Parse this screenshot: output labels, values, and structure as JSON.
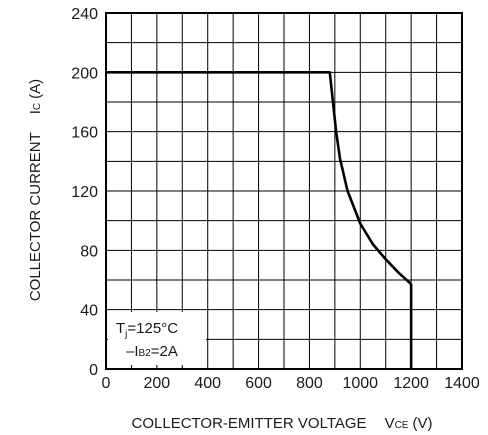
{
  "chart_data": {
    "type": "line",
    "x_axis": {
      "label_main": "COLLECTOR-EMITTER VOLTAGE",
      "label_symbol": "V",
      "label_subscript": "CE",
      "label_unit": "(V)",
      "range": [
        0,
        1400
      ],
      "ticks": [
        "0",
        "200",
        "400",
        "600",
        "800",
        "1000",
        "1200",
        "1400"
      ],
      "minor_step": 100
    },
    "y_axis": {
      "label_main": "COLLECTOR CURRENT",
      "label_symbol": "I",
      "label_subscript": "C",
      "label_unit": "(A)",
      "range": [
        0,
        240
      ],
      "ticks": [
        "0",
        "40",
        "80",
        "120",
        "160",
        "200",
        "240"
      ],
      "minor_step": 20
    },
    "grid": true,
    "series": [
      {
        "x": [
          0,
          880,
          895,
          905,
          920,
          950,
          1000,
          1050,
          1100,
          1150,
          1195,
          1200,
          1200
        ],
        "y": [
          200,
          200,
          176,
          160,
          142,
          120,
          98,
          84,
          74,
          65,
          58,
          57,
          0
        ]
      }
    ],
    "annotations": [
      {
        "line1_symbol": "T",
        "line1_subscript": "j",
        "line1_value": "=125°C"
      },
      {
        "line2_prefix": "–I",
        "line2_subscript": "B2",
        "line2_value": "=2A"
      }
    ]
  }
}
